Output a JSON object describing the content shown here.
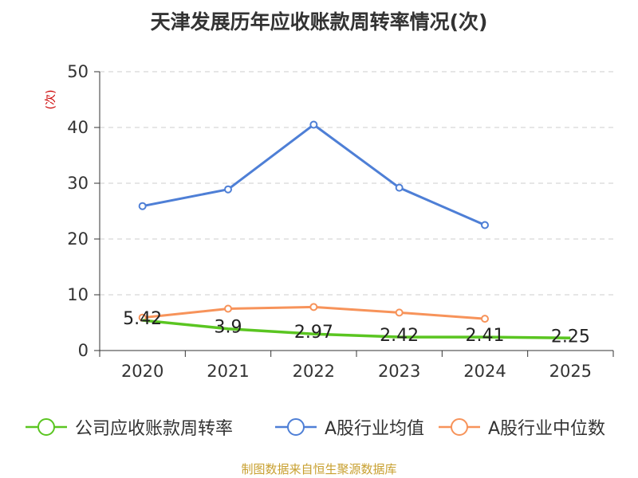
{
  "page": {
    "title": "天津发展历年应收账款周转率情况(次)",
    "source": "制图数据来自恒生聚源数据库"
  },
  "chart_data": {
    "type": "line",
    "title": "天津发展历年应收账款周转率情况(次)",
    "ylabel": "(次)",
    "xlabel": "",
    "ylim": [
      0,
      50
    ],
    "yticks": [
      "0",
      "10",
      "20",
      "30",
      "40",
      "50"
    ],
    "categories": [
      "2020",
      "2021",
      "2022",
      "2023",
      "2024",
      "2025"
    ],
    "grid": true,
    "legend_position": "bottom",
    "series": [
      {
        "name": "公司应收账款周转率",
        "color": "#5ac521",
        "values": [
          5.42,
          3.9,
          2.97,
          2.42,
          2.41,
          2.25
        ],
        "labels": [
          "5.42",
          "3.9",
          "2.97",
          "2.42",
          "2.41",
          "2.25"
        ]
      },
      {
        "name": "A股行业均值",
        "color": "#4e7fd6",
        "values": [
          25.9,
          28.9,
          40.5,
          29.2,
          22.5,
          null
        ]
      },
      {
        "name": "A股行业中位数",
        "color": "#f7935a",
        "values": [
          5.9,
          7.5,
          7.8,
          6.8,
          5.7,
          null
        ]
      }
    ]
  }
}
